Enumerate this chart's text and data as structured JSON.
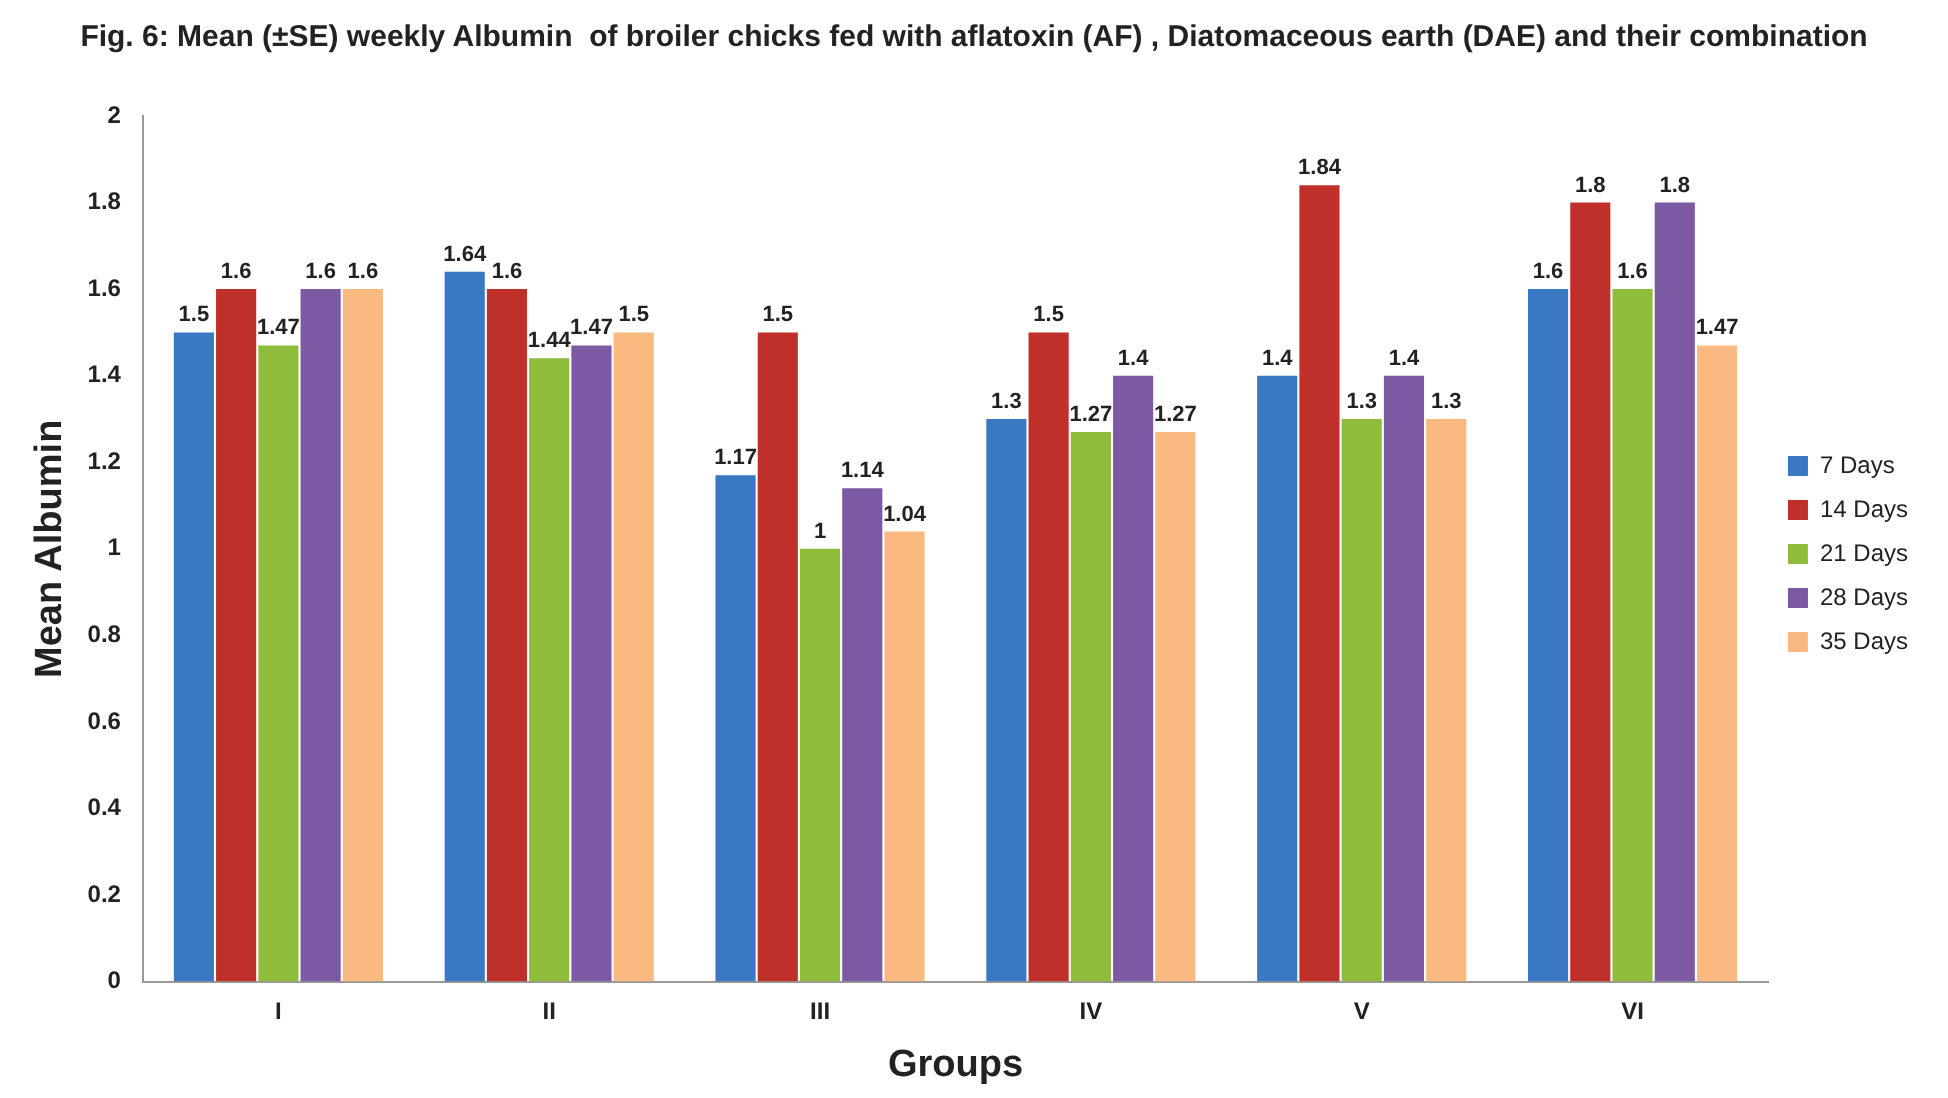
{
  "chart_data": {
    "type": "bar",
    "title": "Fig. 6: Mean (±SE) weekly Albumin  of broiler chicks fed with aflatoxin (AF) , Diatomaceous earth (DAE) and their combination",
    "xlabel": "Groups",
    "ylabel": "Mean Albumin",
    "categories": [
      "I",
      "II",
      "III",
      "IV",
      "V",
      "VI"
    ],
    "series": [
      {
        "name": "7 Days",
        "color": "#3a78c3",
        "values": [
          1.5,
          1.64,
          1.17,
          1.3,
          1.4,
          1.6
        ]
      },
      {
        "name": "14 Days",
        "color": "#c0302a",
        "values": [
          1.6,
          1.6,
          1.5,
          1.5,
          1.84,
          1.8
        ]
      },
      {
        "name": "21 Days",
        "color": "#8ebd3c",
        "values": [
          1.47,
          1.44,
          1,
          1.27,
          1.3,
          1.6
        ]
      },
      {
        "name": "28 Days",
        "color": "#7b59a3",
        "values": [
          1.6,
          1.47,
          1.14,
          1.4,
          1.4,
          1.8
        ]
      },
      {
        "name": "35 Days",
        "color": "#f9b981",
        "values": [
          1.6,
          1.5,
          1.04,
          1.27,
          1.3,
          1.47
        ]
      }
    ],
    "ylim": [
      0,
      2
    ],
    "yticks": [
      0,
      0.2,
      0.4,
      0.6,
      0.8,
      1,
      1.2,
      1.4,
      1.6,
      1.8,
      2
    ],
    "grid": false,
    "legend": "right",
    "data_labels": true
  }
}
